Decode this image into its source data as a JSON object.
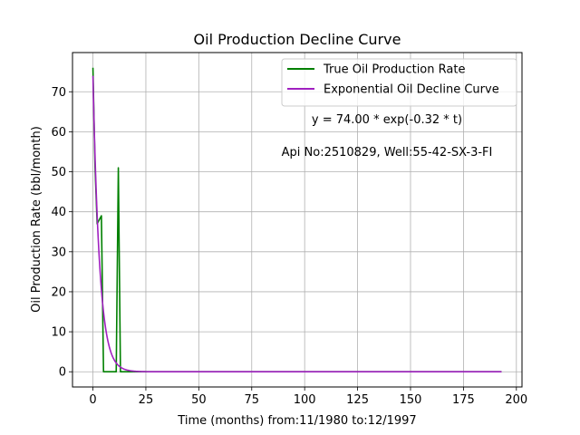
{
  "chart_data": {
    "type": "line",
    "title": "Oil Production Decline Curve",
    "xlabel": "Time (months) from:11/1980 to:12/1997",
    "ylabel": "Oil Production Rate (bbl/month)",
    "xlim": [
      -9.65,
      202.65
    ],
    "ylim": [
      -3.8,
      79.8
    ],
    "xticks": [
      0,
      25,
      50,
      75,
      100,
      125,
      150,
      175,
      200
    ],
    "yticks": [
      0,
      10,
      20,
      30,
      40,
      50,
      60,
      70
    ],
    "grid": true,
    "legend_position": "top-right",
    "annotations": [
      "y = 74.00 * exp(-0.32 * t)",
      "Api No:2510829, Well:55-42-SX-3-FI"
    ],
    "series": [
      {
        "name": "True Oil Production Rate",
        "color": "#008000",
        "x": [
          0,
          1,
          2,
          3,
          4,
          5,
          6,
          7,
          8,
          9,
          10,
          11,
          12,
          13,
          14,
          20,
          50,
          100,
          150,
          193
        ],
        "y": [
          76,
          51,
          37,
          38,
          39,
          0,
          0,
          0,
          0,
          0,
          0,
          0,
          51,
          0,
          0,
          0,
          0,
          0,
          0,
          0
        ]
      },
      {
        "name": "Exponential Oil Decline Curve",
        "color": "#a020c0",
        "fit": {
          "a": 74.0,
          "b": 0.32,
          "x_start": 0,
          "x_end": 193
        }
      }
    ]
  }
}
